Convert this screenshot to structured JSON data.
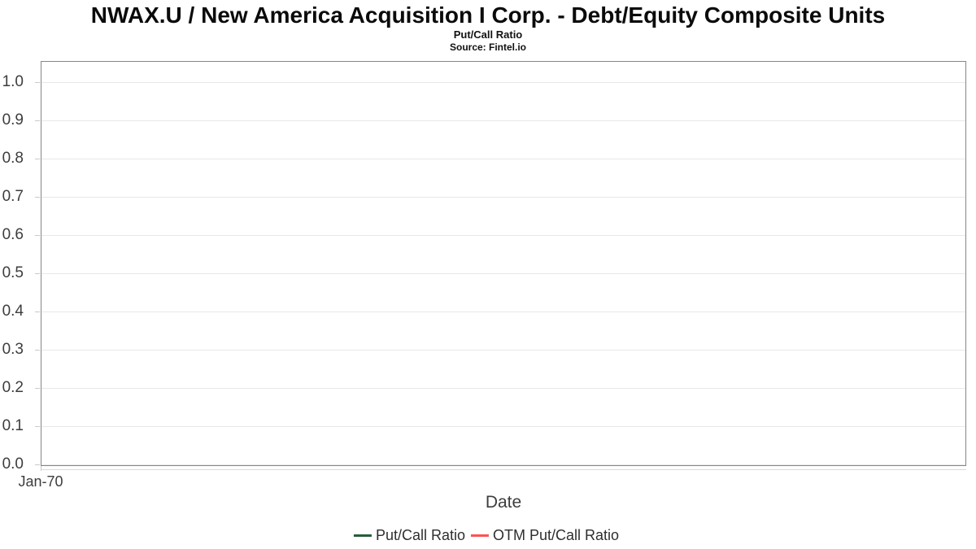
{
  "header": {
    "title": "NWAX.U / New America Acquisition I Corp. - Debt/Equity Composite Units",
    "subtitle": "Put/Call Ratio",
    "source": "Source: Fintel.io"
  },
  "chart_data": {
    "type": "line",
    "title": "NWAX.U / New America Acquisition I Corp. - Debt/Equity Composite Units",
    "subtitle": "Put/Call Ratio",
    "source": "Source: Fintel.io",
    "xlabel": "Date",
    "ylabel": "",
    "x_ticks": [
      "Jan-70"
    ],
    "y_ticks": [
      "0.0",
      "0.1",
      "0.2",
      "0.3",
      "0.4",
      "0.5",
      "0.6",
      "0.7",
      "0.8",
      "0.9",
      "1.0"
    ],
    "ylim": [
      0.0,
      1.05
    ],
    "grid": "horizontal",
    "legend_position": "bottom",
    "series": [
      {
        "name": "Put/Call Ratio",
        "color": "#275d3b",
        "x": [],
        "values": []
      },
      {
        "name": "OTM Put/Call Ratio",
        "color": "#fb5452",
        "x": [],
        "values": []
      }
    ],
    "note": "empty plot area - no data points rendered"
  },
  "colors": {
    "plot_border": "#868686",
    "gridline": "#e8e8e8",
    "tick": "#c9c9c9",
    "tick_label": "#3d3d3d",
    "legend_green": "#275d3b",
    "legend_red": "#fb5452"
  },
  "legend": {
    "items": [
      {
        "label": "Put/Call Ratio",
        "color": "#275d3b"
      },
      {
        "label": "OTM Put/Call Ratio",
        "color": "#fb5452"
      }
    ]
  }
}
